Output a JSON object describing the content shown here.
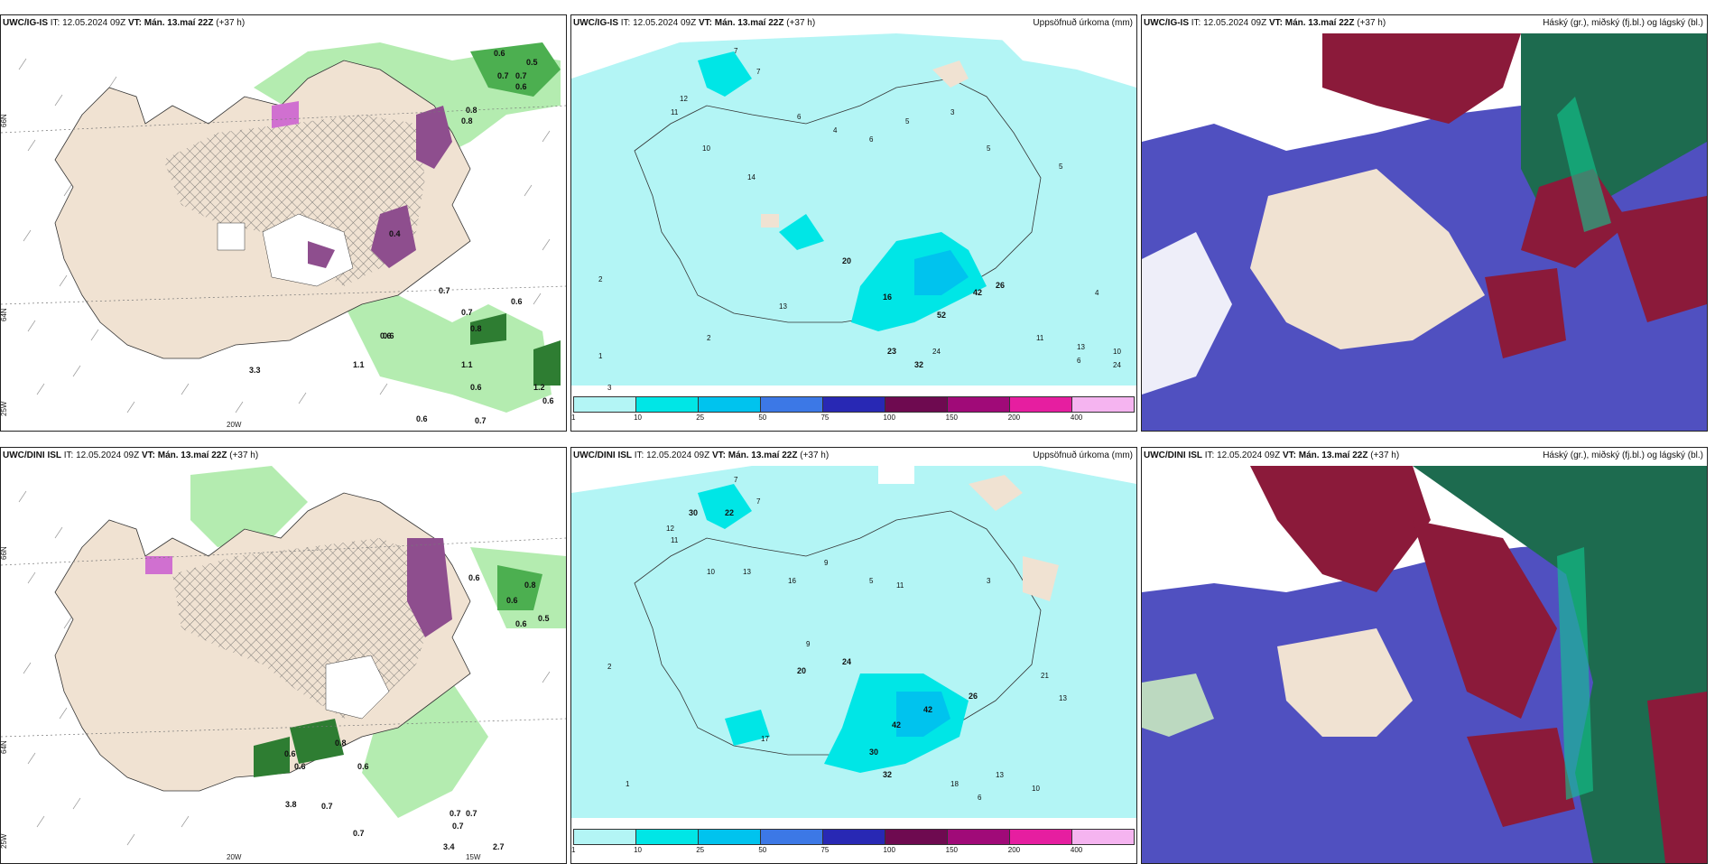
{
  "rows": [
    {
      "model": "UWC/IG-IS",
      "it_prefix": "IT: 12.05.2024 09Z",
      "vt": "VT: Mán. 13.maí 22Z",
      "lead": "(+37 h)",
      "panels": [
        {
          "type": "precip-type",
          "right_title": ""
        },
        {
          "type": "accum-precip",
          "right_title": "Uppsöfnuð úrkoma (mm)"
        },
        {
          "type": "clouds",
          "right_title": "Háský (gr.), miðský (fj.bl.) og lágský (bl.)"
        }
      ],
      "axis_labels": {
        "lat66": "66N",
        "lat64": "64N",
        "lon25": "25W",
        "lon20": "20W"
      },
      "rate_labels": [
        "0.6",
        "0.5",
        "0.7",
        "0.7",
        "0.6",
        "0.8",
        "0.8",
        "0.7",
        "0.6",
        "0.7",
        "0.6",
        "0.8",
        "0.6",
        "1.1",
        "1.2",
        "0.6",
        "0.7",
        "1.1",
        "3.3",
        "0.6",
        "0.6",
        "0.4"
      ],
      "accum_labels": [
        "7",
        "7",
        "12",
        "11",
        "10",
        "14",
        "6",
        "4",
        "6",
        "5",
        "3",
        "5",
        "2",
        "16",
        "20",
        "23",
        "32",
        "52",
        "42",
        "26",
        "24",
        "5",
        "13",
        "4",
        "11",
        "10",
        "1",
        "3",
        "2",
        "24",
        "13",
        "6"
      ]
    },
    {
      "model": "UWC/DINI ISL",
      "it_prefix": "IT: 12.05.2024 09Z",
      "vt": "VT: Mán. 13.maí 22Z",
      "lead": "(+37 h)",
      "panels": [
        {
          "type": "precip-type",
          "right_title": ""
        },
        {
          "type": "accum-precip",
          "right_title": "Uppsöfnuð úrkoma (mm)"
        },
        {
          "type": "clouds",
          "right_title": "Háský (gr.), miðský (fj.bl.) og lágský (bl.)"
        }
      ],
      "axis_labels": {
        "lat66": "66N",
        "lat64": "64N",
        "lon25": "25W",
        "lon20": "20W",
        "lon15": "15W"
      },
      "rate_labels": [
        "0.6",
        "0.8",
        "0.6",
        "0.5",
        "0.6",
        "0.6",
        "0.6",
        "0.8",
        "0.6",
        "0.7",
        "3.8",
        "0.7",
        "0.7",
        "0.7",
        "0.7",
        "3.4",
        "2.7"
      ],
      "accum_labels": [
        "7",
        "7",
        "30",
        "22",
        "12",
        "11",
        "10",
        "13",
        "16",
        "9",
        "5",
        "11",
        "3",
        "24",
        "20",
        "30",
        "42",
        "32",
        "42",
        "26",
        "17",
        "21",
        "13",
        "10",
        "18",
        "6",
        "1",
        "2",
        "9",
        "13"
      ]
    }
  ],
  "colorbar": {
    "ticks": [
      "1",
      "10",
      "25",
      "50",
      "75",
      "100",
      "150",
      "200",
      "400"
    ],
    "colors": [
      "#b3f5f5",
      "#00e6e6",
      "#00c3ee",
      "#3c78e6",
      "#2828b4",
      "#6e0a50",
      "#a00a78",
      "#e61ea0",
      "#f5b4f0"
    ]
  },
  "colors": {
    "land": "#f0e2d2",
    "sea": "#ffffff",
    "light_rain": "#b4ecb0",
    "moderate_rain": "#4caf50",
    "snow_hatch": "#6e6e6e",
    "sleet": "#8e4e8e",
    "accum_base": "#b3f5f5",
    "high_cloud": "#1d6b4f",
    "mid_cloud": "#8b1a3a",
    "low_cloud": "#5050c0"
  }
}
